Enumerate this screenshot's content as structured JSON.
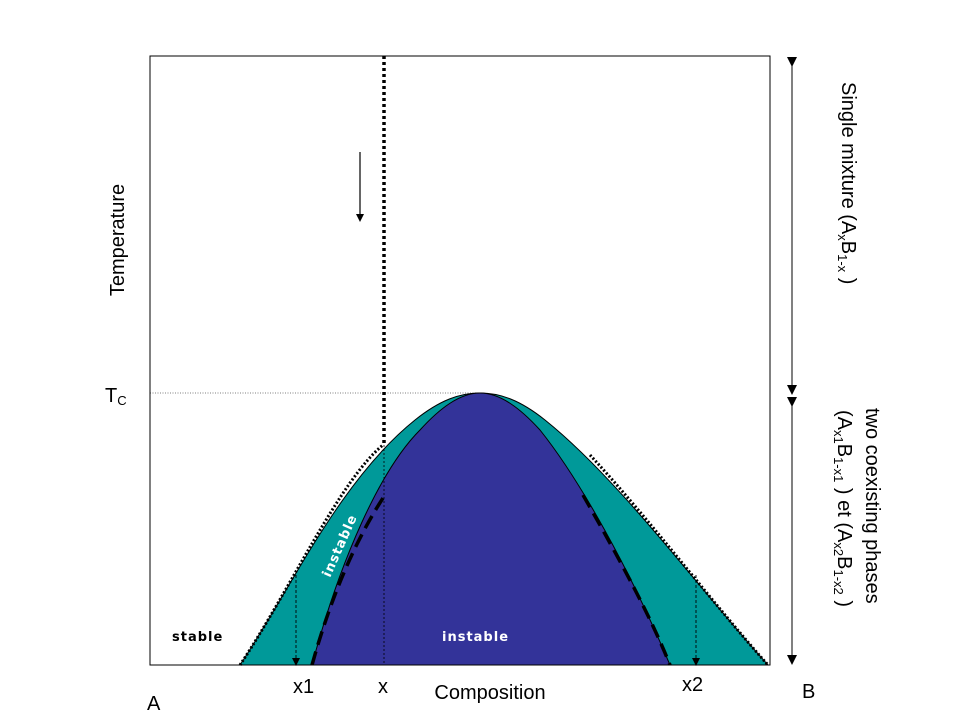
{
  "diagram": {
    "axis_labels": {
      "temperature": "Temperature",
      "composition": "Composition",
      "tc": "T",
      "tc_sub": "C"
    },
    "endpoints": {
      "left": "A",
      "right": "B"
    },
    "compositions": {
      "x1": "x1",
      "x": "x",
      "x2": "x2"
    },
    "regions": {
      "stable": "stable",
      "instable_left": "instable",
      "instable_center": "instable"
    },
    "annotations": {
      "single_mixture": {
        "prefix": "Single mixture (A",
        "sub1": "x",
        "mid": "B",
        "sub2": "1-x",
        "suffix": " )"
      },
      "two_phases": {
        "line1": "two coexisting phases",
        "line2": {
          "p1": "(A",
          "s1": "x1",
          "p2": "B",
          "s2": "1-x1",
          "p3": " ) et (A",
          "s3": "x2",
          "p4": "B",
          "s4": "1-x2",
          "p5": " )"
        }
      }
    },
    "colors": {
      "teal_region": "#009999",
      "blue_region": "#333399",
      "lines": "#000000"
    }
  }
}
